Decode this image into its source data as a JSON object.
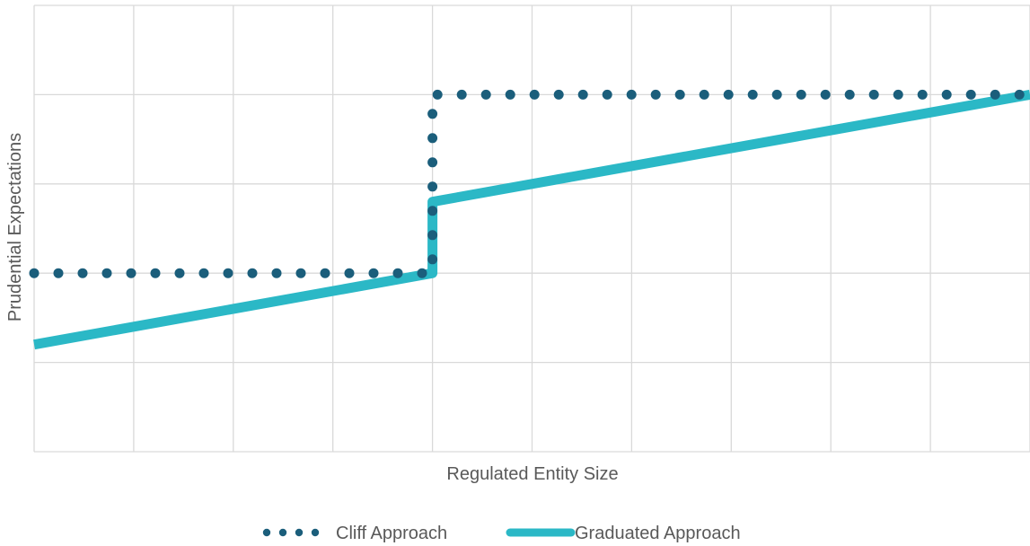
{
  "chart_data": {
    "type": "line",
    "title": "",
    "xlabel": "Regulated Entity Size",
    "ylabel": "Prudential Expectations",
    "xlim": [
      0,
      10
    ],
    "ylim": [
      0,
      5
    ],
    "grid": true,
    "x_gridlines": 10,
    "y_gridlines": 5,
    "legend_position": "bottom",
    "series": [
      {
        "name": "Cliff Approach",
        "style": "dotted",
        "color": "#1b5e7b",
        "points": [
          [
            0,
            2
          ],
          [
            4,
            2
          ],
          [
            4,
            4
          ],
          [
            10,
            4
          ]
        ]
      },
      {
        "name": "Graduated Approach",
        "style": "solid",
        "color": "#2bb8c6",
        "points": [
          [
            0,
            1.2
          ],
          [
            4,
            2
          ],
          [
            4,
            2.8
          ],
          [
            10,
            4
          ]
        ]
      }
    ]
  },
  "colors": {
    "grid": "#d9d9d9",
    "text": "#595959"
  }
}
